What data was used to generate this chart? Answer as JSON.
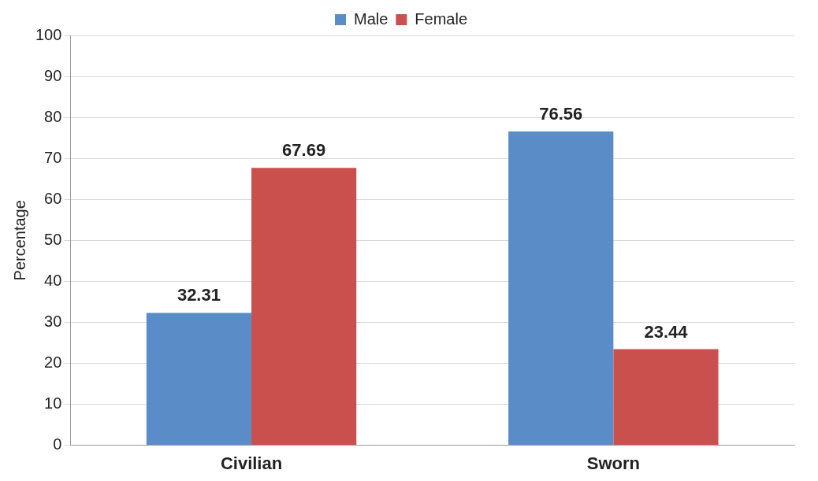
{
  "chart_data": {
    "type": "bar",
    "ylabel": "Percentage",
    "categories": [
      "Civilian",
      "Sworn"
    ],
    "series": [
      {
        "name": "Male",
        "color": "#5a8cc8",
        "values": [
          32.31,
          76.56
        ]
      },
      {
        "name": "Female",
        "color": "#c9504d",
        "values": [
          67.69,
          23.44
        ]
      }
    ],
    "ylim": [
      0,
      100
    ],
    "yticks": [
      0,
      10,
      20,
      30,
      40,
      50,
      60,
      70,
      80,
      90,
      100
    ],
    "grid": "y",
    "legend": "top",
    "data_labels": true
  }
}
